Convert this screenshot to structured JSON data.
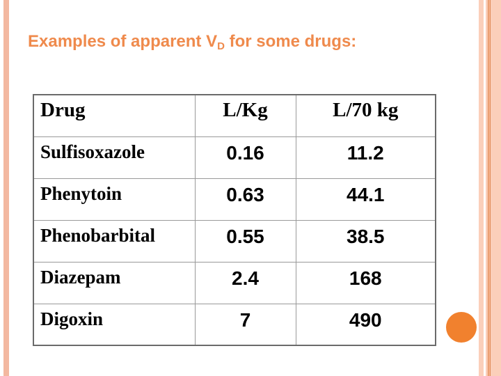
{
  "slide": {
    "background_color": "#ffffff",
    "decor": {
      "left_stripe_color": "#f3b8a0",
      "right_stripe_color": "#fbcfba",
      "right_stripe_line_color": "#e08a55",
      "circle_color": "#f1812e"
    },
    "title": {
      "prefix": "Examples of apparent V",
      "subscript": "D",
      "suffix": " for some drugs:",
      "color": "#ef8a4c"
    },
    "table": {
      "headers": [
        "Drug",
        "L/Kg",
        "L/70 kg"
      ],
      "rows": [
        {
          "drug": "Sulfisoxazole",
          "l_per_kg": "0.16",
          "l_per_70kg": "11.2"
        },
        {
          "drug": "Phenytoin",
          "l_per_kg": "0.63",
          "l_per_70kg": "44.1"
        },
        {
          "drug": "Phenobarbital",
          "l_per_kg": "0.55",
          "l_per_70kg": "38.5"
        },
        {
          "drug": "Diazepam",
          "l_per_kg": "2.4",
          "l_per_70kg": "168"
        },
        {
          "drug": "Digoxin",
          "l_per_kg": "7",
          "l_per_70kg": "490"
        }
      ],
      "border_color": "#6a6a6a",
      "grid_color": "#999999"
    }
  }
}
